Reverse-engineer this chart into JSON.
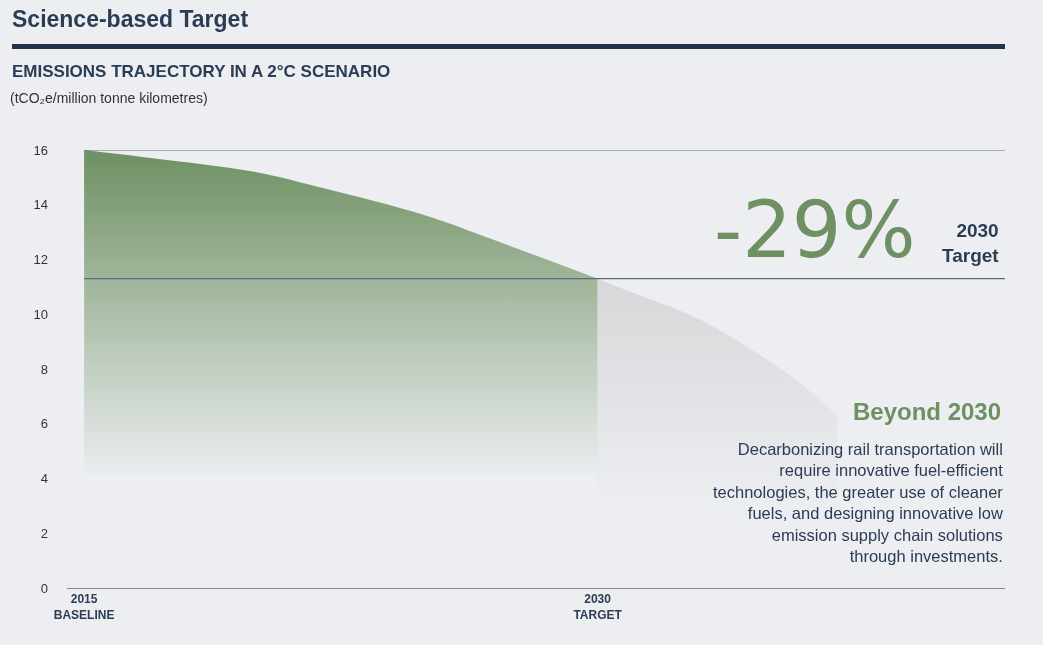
{
  "chart_data": {
    "type": "area",
    "title": "Science-based Target",
    "subtitle": "EMISSIONS TRAJECTORY IN A 2°C SCENARIO",
    "ylabel": "(tCO₂e/million tonne kilometres)",
    "series": [
      {
        "x": [
          2015,
          2017,
          2020,
          2022,
          2025,
          2027,
          2030
        ],
        "values": [
          16,
          15.7,
          15.2,
          14.6,
          13.6,
          12.7,
          11.3
        ],
        "color": "#6e9062"
      },
      {
        "x": [
          2030,
          2031,
          2033,
          2035,
          2036,
          2037
        ],
        "values": [
          11.3,
          10.8,
          9.8,
          8.3,
          7.4,
          6.3
        ],
        "color": "#d6d8da"
      }
    ],
    "xlim": [
      2014.5,
      2041.9
    ],
    "xticks": [
      {
        "value": 2015,
        "label": "2015\nBASELINE"
      },
      {
        "value": 2030,
        "label": "2030\nTARGET"
      }
    ],
    "ylim": [
      0,
      16
    ],
    "yticks": [
      0,
      2,
      4,
      6,
      8,
      10,
      12,
      14,
      16
    ],
    "ref_lines": [
      {
        "axis": "y",
        "value": 16,
        "color": "#5f6b78"
      },
      {
        "axis": "y",
        "value": 11.3,
        "color": "#5f6b78"
      }
    ],
    "annotations": [
      "-29%",
      "2030\nTarget",
      "Beyond 2030",
      "Decarbonizing rail transportation will\nrequire innovative fuel-efficient\ntechnologies, the greater use of cleaner\nfuels, and designing innovative low\nemission supply chain solutions\nthrough investments."
    ]
  }
}
